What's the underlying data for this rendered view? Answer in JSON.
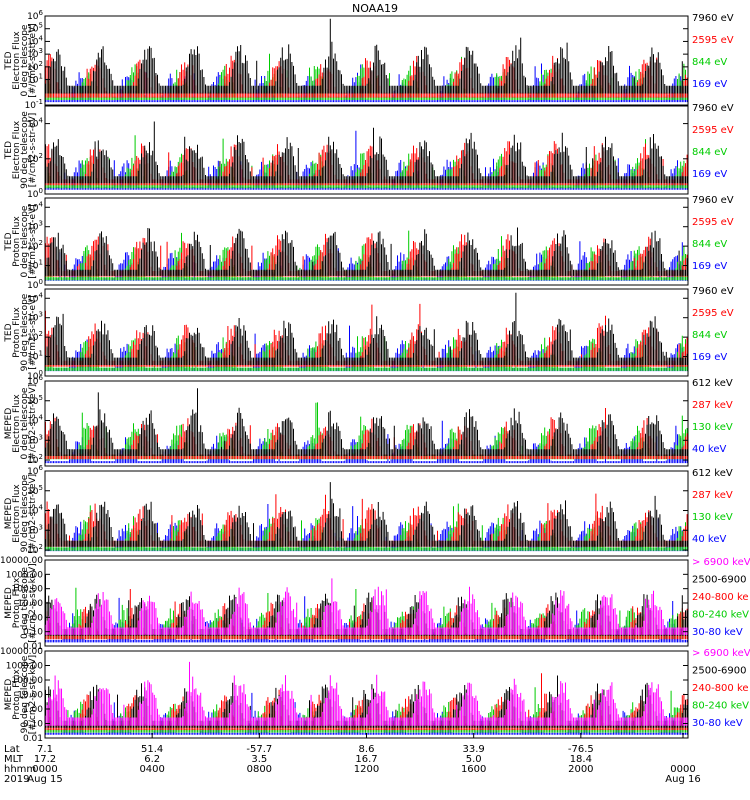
{
  "title": "NOAA19",
  "chart_data": [
    {
      "type": "line",
      "ylabel": [
        "TED",
        "Electron Flux",
        "0 deg telescope",
        "[#/cm2-s-str-eV]"
      ],
      "yticks": [
        "10^-1",
        "10^1",
        "10^2",
        "10^3",
        "10^4",
        "10^5",
        "10^6"
      ],
      "ylim": [
        0.1,
        1000000
      ],
      "y_scale": "log",
      "legend": [
        {
          "label": "7960 eV",
          "color": "#000000"
        },
        {
          "label": "2595 eV",
          "color": "#ff0000"
        },
        {
          "label": "844 eV",
          "color": "#00cc00"
        },
        {
          "label": "169 eV",
          "color": "#0000ff"
        }
      ]
    },
    {
      "type": "line",
      "ylabel": [
        "TED",
        "Electron Flux",
        "90 deg telescope",
        "[#/cm2-s-str-eV]"
      ],
      "yticks": [
        "10^0",
        "10^2",
        "10^4"
      ],
      "ylim": [
        1,
        100000
      ],
      "y_scale": "log",
      "legend": [
        {
          "label": "7960 eV",
          "color": "#000000"
        },
        {
          "label": "2595 eV",
          "color": "#ff0000"
        },
        {
          "label": "844 eV",
          "color": "#00cc00"
        },
        {
          "label": "169 eV",
          "color": "#0000ff"
        }
      ]
    },
    {
      "type": "line",
      "ylabel": [
        "TED",
        "Proton Flux",
        "0 deg telescope",
        "[#/cm2-s-str-eV]"
      ],
      "yticks": [
        "10^0",
        "10^1",
        "10^2",
        "10^3",
        "10^4"
      ],
      "ylim": [
        1,
        30000
      ],
      "y_scale": "log",
      "legend": [
        {
          "label": "7960 eV",
          "color": "#000000"
        },
        {
          "label": "2595 eV",
          "color": "#ff0000"
        },
        {
          "label": "844 eV",
          "color": "#00cc00"
        },
        {
          "label": "169 eV",
          "color": "#0000ff"
        }
      ]
    },
    {
      "type": "line",
      "ylabel": [
        "TED",
        "Proton Flux",
        "90 deg telescope",
        "[#/cm2-s-str-eV]"
      ],
      "yticks": [
        "10^0",
        "10^1",
        "10^2",
        "10^3",
        "10^4"
      ],
      "ylim": [
        1,
        30000
      ],
      "y_scale": "log",
      "legend": [
        {
          "label": "7960 eV",
          "color": "#000000"
        },
        {
          "label": "2595 eV",
          "color": "#ff0000"
        },
        {
          "label": "844 eV",
          "color": "#00cc00"
        },
        {
          "label": "169 eV",
          "color": "#0000ff"
        }
      ]
    },
    {
      "type": "line",
      "ylabel": [
        "MEPED",
        "Electron Flux",
        "0 deg telescope",
        "[#/cm2-s-str-keV]"
      ],
      "yticks": [
        "10^2",
        "10^3",
        "10^4",
        "10^5",
        "10^6"
      ],
      "ylim": [
        50,
        1000000
      ],
      "y_scale": "log",
      "legend": [
        {
          "label": "612 keV",
          "color": "#000000"
        },
        {
          "label": "287 keV",
          "color": "#ff0000"
        },
        {
          "label": "130 keV",
          "color": "#00cc00"
        },
        {
          "label": "40 keV",
          "color": "#0000ff"
        }
      ]
    },
    {
      "type": "line",
      "ylabel": [
        "MEPED",
        "Electron Flux",
        "90 deg telescope",
        "[#/cm2-s-str-keV]"
      ],
      "yticks": [
        "10^2",
        "10^3",
        "10^4",
        "10^5",
        "10^6"
      ],
      "ylim": [
        50,
        1000000
      ],
      "y_scale": "log",
      "legend": [
        {
          "label": "612 keV",
          "color": "#000000"
        },
        {
          "label": "287 keV",
          "color": "#ff0000"
        },
        {
          "label": "130 keV",
          "color": "#00cc00"
        },
        {
          "label": "40 keV",
          "color": "#0000ff"
        }
      ]
    },
    {
      "type": "line",
      "ylabel": [
        "MEPED",
        "Proton Flux",
        "0 deg telescope",
        "[#/cm2-s-str-keV]"
      ],
      "yticks": [
        "0.01",
        "0.10",
        "1.00",
        "10.00",
        "100.00",
        "1000.00",
        "10000.00"
      ],
      "ylim": [
        0.01,
        10000
      ],
      "y_scale": "log",
      "legend": [
        {
          "label": "> 6900 keV",
          "color": "#ff00ff"
        },
        {
          "label": "2500-6900",
          "color": "#000000"
        },
        {
          "label": "240-800 ke",
          "color": "#ff0000"
        },
        {
          "label": "80-240 keV",
          "color": "#00cc00"
        },
        {
          "label": "30-80 keV",
          "color": "#0000ff"
        }
      ]
    },
    {
      "type": "line",
      "ylabel": [
        "MEPED",
        "Proton Flux",
        "90 deg telescope",
        "[#/cm2-s-str-keV]"
      ],
      "yticks": [
        "0.01",
        "0.10",
        "1.00",
        "10.00",
        "100.00",
        "1000.00",
        "10000.00"
      ],
      "ylim": [
        0.01,
        10000
      ],
      "y_scale": "log",
      "legend": [
        {
          "label": "> 6900 keV",
          "color": "#ff00ff"
        },
        {
          "label": "2500-6900",
          "color": "#000000"
        },
        {
          "label": "240-800 ke",
          "color": "#ff0000"
        },
        {
          "label": "80-240 keV",
          "color": "#00cc00"
        },
        {
          "label": "30-80 keV",
          "color": "#0000ff"
        }
      ]
    }
  ],
  "x_axis": {
    "row_labels": [
      "Lat",
      "MLT",
      "hhmm",
      "2019"
    ],
    "ticks": [
      {
        "lat": "7.1",
        "mlt": "17.2",
        "hhmm": "0000",
        "date": "Aug 15"
      },
      {
        "lat": "51.4",
        "mlt": "6.2",
        "hhmm": "0400",
        "date": ""
      },
      {
        "lat": "-57.7",
        "mlt": "3.5",
        "hhmm": "0800",
        "date": ""
      },
      {
        "lat": "8.6",
        "mlt": "16.7",
        "hhmm": "1200",
        "date": ""
      },
      {
        "lat": "33.9",
        "mlt": "5.0",
        "hhmm": "1600",
        "date": ""
      },
      {
        "lat": "-76.5",
        "mlt": "18.4",
        "hhmm": "2000",
        "date": ""
      },
      {
        "lat": "",
        "mlt": "",
        "hhmm": "0000",
        "date": "Aug 16"
      }
    ]
  }
}
